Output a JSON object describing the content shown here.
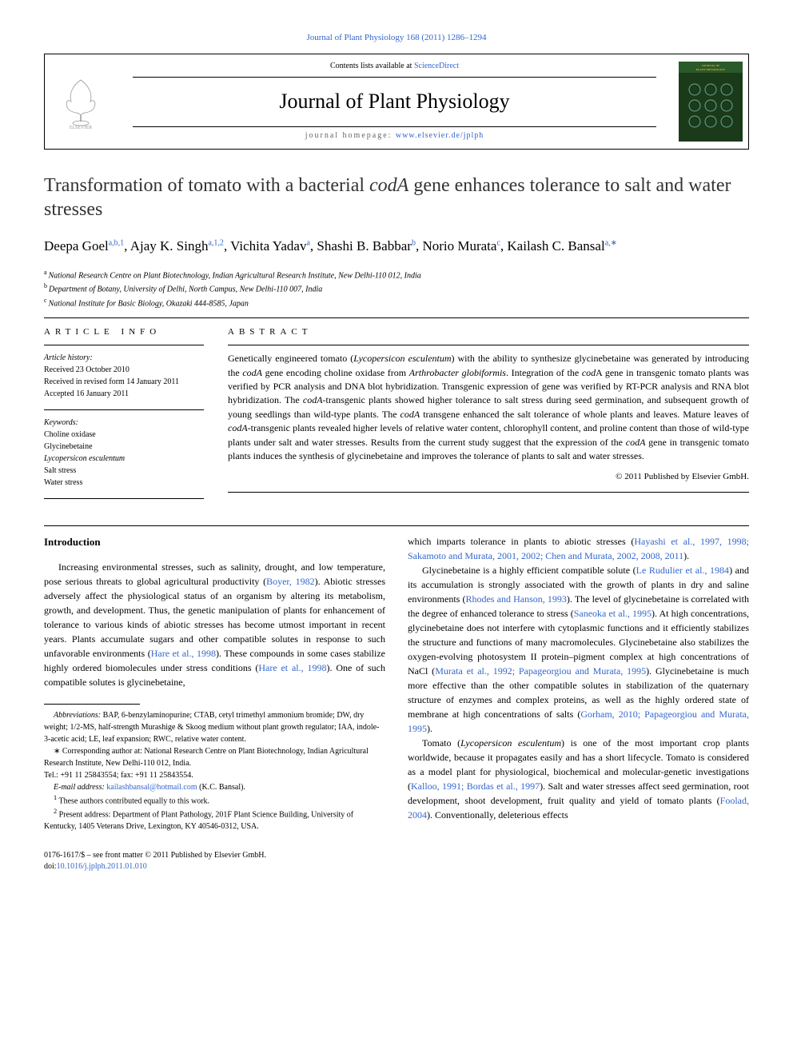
{
  "citation": "Journal of Plant Physiology 168 (2011) 1286–1294",
  "header": {
    "contents_pre": "Contents lists available at ",
    "contents_link": "ScienceDirect",
    "journal_name": "Journal of Plant Physiology",
    "homepage_pre": "journal homepage: ",
    "homepage_url": "www.elsevier.de/jplph"
  },
  "title_parts": {
    "pre": "Transformation of tomato with a bacterial ",
    "em": "codA",
    "post": " gene enhances tolerance to salt and water stresses"
  },
  "authors": [
    {
      "name": "Deepa Goel",
      "sup": "a,b,1"
    },
    {
      "name": "Ajay K. Singh",
      "sup": "a,1,2"
    },
    {
      "name": "Vichita Yadav",
      "sup": "a"
    },
    {
      "name": "Shashi B. Babbar",
      "sup": "b"
    },
    {
      "name": "Norio Murata",
      "sup": "c"
    },
    {
      "name": "Kailash C. Bansal",
      "sup": "a,∗"
    }
  ],
  "affiliations": [
    {
      "sup": "a",
      "text": "National Research Centre on Plant Biotechnology, Indian Agricultural Research Institute, New Delhi-110 012, India"
    },
    {
      "sup": "b",
      "text": "Department of Botany, University of Delhi, North Campus, New Delhi-110 007, India"
    },
    {
      "sup": "c",
      "text": "National Institute for Basic Biology, Okazaki 444-8585, Japan"
    }
  ],
  "article_info": {
    "header": "article info",
    "history_label": "Article history:",
    "history": [
      "Received 23 October 2010",
      "Received in revised form 14 January 2011",
      "Accepted 16 January 2011"
    ],
    "keywords_label": "Keywords:",
    "keywords": [
      "Choline oxidase",
      "Glycinebetaine",
      "Lycopersicon esculentum",
      "Salt stress",
      "Water stress"
    ]
  },
  "abstract": {
    "header": "abstract",
    "text_runs": [
      {
        "t": "Genetically engineered tomato ("
      },
      {
        "t": "Lycopersicon esculentum",
        "em": true
      },
      {
        "t": ") with the ability to synthesize glycinebetaine was generated by introducing the "
      },
      {
        "t": "codA",
        "em": true
      },
      {
        "t": " gene encoding choline oxidase from "
      },
      {
        "t": "Arthrobacter globiformis",
        "em": true
      },
      {
        "t": ". Integration of the "
      },
      {
        "t": "cod",
        "em": true
      },
      {
        "t": "A gene in transgenic tomato plants was verified by PCR analysis and DNA blot hybridization. Transgenic expression of gene was verified by RT-PCR analysis and RNA blot hybridization. The "
      },
      {
        "t": "codA",
        "em": true
      },
      {
        "t": "-transgenic plants showed higher tolerance to salt stress during seed germination, and subsequent growth of young seedlings than wild-type plants. The "
      },
      {
        "t": "codA",
        "em": true
      },
      {
        "t": " transgene enhanced the salt tolerance of whole plants and leaves. Mature leaves of "
      },
      {
        "t": "codA",
        "em": true
      },
      {
        "t": "-transgenic plants revealed higher levels of relative water content, chlorophyll content, and proline content than those of wild-type plants under salt and water stresses. Results from the current study suggest that the expression of the "
      },
      {
        "t": "codA",
        "em": true
      },
      {
        "t": " gene in transgenic tomato plants induces the synthesis of glycinebetaine and improves the tolerance of plants to salt and water stresses."
      }
    ],
    "copyright": "© 2011 Published by Elsevier GmbH."
  },
  "intro_heading": "Introduction",
  "left_paragraphs": [
    {
      "runs": [
        {
          "t": "Increasing environmental stresses, such as salinity, drought, and low temperature, pose serious threats to global agricultural productivity ("
        },
        {
          "t": "Boyer, 1982",
          "link": true
        },
        {
          "t": "). Abiotic stresses adversely affect the physiological status of an organism by altering its metabolism, growth, and development. Thus, the genetic manipulation of plants for enhancement of tolerance to various kinds of abiotic stresses has become utmost important in recent years. Plants accumulate sugars and other compatible solutes in response to such unfavorable environments ("
        },
        {
          "t": "Hare et al., 1998",
          "link": true
        },
        {
          "t": "). These compounds in some cases stabilize highly ordered biomolecules under stress conditions ("
        },
        {
          "t": "Hare et al., 1998",
          "link": true
        },
        {
          "t": "). One of such compatible solutes is glycinebetaine,"
        }
      ]
    }
  ],
  "right_paragraphs": [
    {
      "noindent": true,
      "runs": [
        {
          "t": "which imparts tolerance in plants to abiotic stresses ("
        },
        {
          "t": "Hayashi et al., 1997, 1998; Sakamoto and Murata, 2001, 2002; Chen and Murata, 2002, 2008, 2011",
          "link": true
        },
        {
          "t": ")."
        }
      ]
    },
    {
      "runs": [
        {
          "t": "Glycinebetaine is a highly efficient compatible solute ("
        },
        {
          "t": "Le Rudulier et al., 1984",
          "link": true
        },
        {
          "t": ") and its accumulation is strongly associated with the growth of plants in dry and saline environments ("
        },
        {
          "t": "Rhodes and Hanson, 1993",
          "link": true
        },
        {
          "t": "). The level of glycinebetaine is correlated with the degree of enhanced tolerance to stress ("
        },
        {
          "t": "Saneoka et al., 1995",
          "link": true
        },
        {
          "t": "). At high concentrations, glycinebetaine does not interfere with cytoplasmic functions and it efficiently stabilizes the structure and functions of many macromolecules. Glycinebetaine also stabilizes the oxygen-evolving photosystem II protein–pigment complex at high concentrations of NaCl ("
        },
        {
          "t": "Murata et al., 1992; Papageorgiou and Murata, 1995",
          "link": true
        },
        {
          "t": "). Glycinebetaine is much more effective than the other compatible solutes in stabilization of the quaternary structure of enzymes and complex proteins, as well as the highly ordered state of membrane at high concentrations of salts ("
        },
        {
          "t": "Gorham, 2010; Papageorgiou and Murata, 1995",
          "link": true
        },
        {
          "t": ")."
        }
      ]
    },
    {
      "runs": [
        {
          "t": "Tomato ("
        },
        {
          "t": "Lycopersicon esculentum",
          "em": true
        },
        {
          "t": ") is one of the most important crop plants worldwide, because it propagates easily and has a short lifecycle. Tomato is considered as a model plant for physiological, biochemical and molecular-genetic investigations ("
        },
        {
          "t": "Kalloo, 1991; Bordas et al., 1997",
          "link": true
        },
        {
          "t": "). Salt and water stresses affect seed germination, root development, shoot development, fruit quality and yield of tomato plants ("
        },
        {
          "t": "Foolad, 2004",
          "link": true
        },
        {
          "t": "). Conventionally, deleterious effects"
        }
      ]
    }
  ],
  "footnotes": {
    "abbrev_label": "Abbreviations:",
    "abbrev_text": " BAP, 6-benzylaminopurine; CTAB, cetyl trimethyl ammonium bromide; DW, dry weight; 1/2-MS, half-strength Murashige & Skoog medium without plant growth regulator; IAA, indole-3-acetic acid; LE, leaf expansion; RWC, relative water content.",
    "corr_marker": "∗",
    "corr_text": " Corresponding author at: National Research Centre on Plant Biotechnology, Indian Agricultural Research Institute, New Delhi-110 012, India.",
    "tel_fax": "Tel.: +91 11 25843554; fax: +91 11 25843554.",
    "email_label": "E-mail address:",
    "email_addr": "kailashbansal@hotmail.com",
    "email_post": " (K.C. Bansal).",
    "note1_marker": "1",
    "note1_text": " These authors contributed equally to this work.",
    "note2_marker": "2",
    "note2_text": " Present address: Department of Plant Pathology, 201F Plant Science Building, University of Kentucky, 1405 Veterans Drive, Lexington, KY 40546-0312, USA."
  },
  "bottom": {
    "issn_line": "0176-1617/$ – see front matter © 2011 Published by Elsevier GmbH.",
    "doi_pre": "doi:",
    "doi": "10.1016/j.jplph.2011.01.010"
  },
  "colors": {
    "link": "#3366cc",
    "text": "#000000",
    "bg": "#ffffff",
    "cover_bg": "#f5a623",
    "cover_banner": "#2a5a2a",
    "cover_dark": "#1a3a1a"
  }
}
